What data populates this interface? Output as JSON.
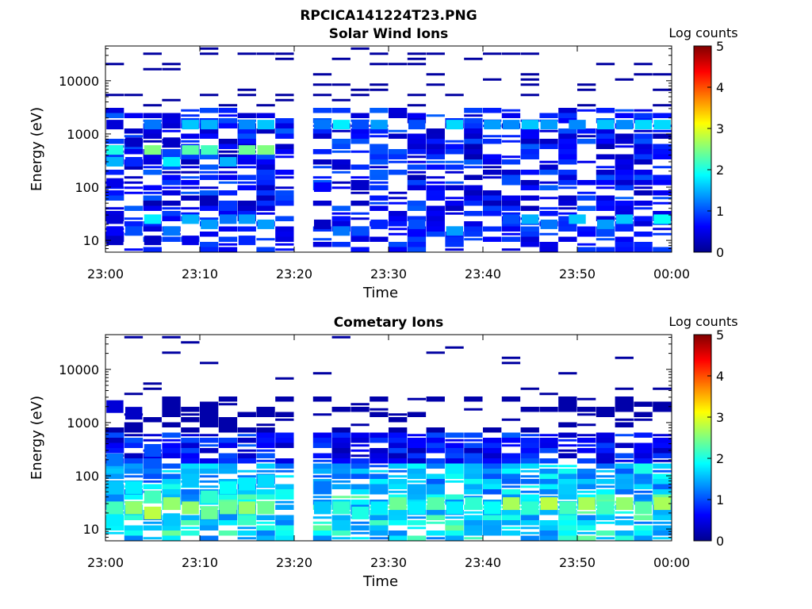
{
  "figure_title": "RPCICA141224T23.PNG",
  "colormap": [
    "#00008f",
    "#0000ff",
    "#0080ff",
    "#00ffff",
    "#80ff80",
    "#ffff00",
    "#ff8000",
    "#ff0000",
    "#800000"
  ],
  "chart_data": [
    {
      "type": "heatmap",
      "title": "Solar Wind Ions",
      "xlabel": "Time",
      "ylabel": "Energy (eV)",
      "x_ticks": [
        "23:00",
        "23:10",
        "23:20",
        "23:30",
        "23:40",
        "23:50",
        "00:00"
      ],
      "x_range": [
        "23:00",
        "00:00"
      ],
      "y_scale": "log",
      "y_ticks": [
        10,
        100,
        1000,
        10000
      ],
      "y_range": [
        6,
        45000
      ],
      "colorbar": {
        "label": "Log counts",
        "ticks": [
          0,
          1,
          2,
          3,
          4,
          5
        ],
        "range": [
          0,
          5
        ]
      },
      "data_gap": [
        "23:19",
        "23:22"
      ],
      "cells": [
        [
          "23:01",
          10,
          0.3
        ],
        [
          "23:01",
          15,
          0.6
        ],
        [
          "23:01",
          25,
          0.4
        ],
        [
          "23:01",
          120,
          0.5
        ],
        [
          "23:01",
          300,
          1.5
        ],
        [
          "23:01",
          500,
          2.0
        ],
        [
          "23:01",
          1500,
          0.4
        ],
        [
          "23:03",
          15,
          1.0
        ],
        [
          "23:03",
          300,
          0.8
        ],
        [
          "23:03",
          700,
          0.3
        ],
        [
          "23:05",
          10,
          0.3
        ],
        [
          "23:05",
          25,
          1.8
        ],
        [
          "23:05",
          500,
          2.5
        ],
        [
          "23:05",
          1500,
          1.2
        ],
        [
          "23:07",
          15,
          1.2
        ],
        [
          "23:07",
          300,
          1.8
        ],
        [
          "23:07",
          700,
          0.3
        ],
        [
          "23:09",
          10,
          0.5
        ],
        [
          "23:09",
          25,
          1.5
        ],
        [
          "23:09",
          500,
          2.3
        ],
        [
          "23:09",
          1500,
          1.6
        ],
        [
          "23:11",
          20,
          1.4
        ],
        [
          "23:11",
          500,
          2.2
        ],
        [
          "23:11",
          1500,
          1.5
        ],
        [
          "23:13",
          25,
          1.2
        ],
        [
          "23:13",
          300,
          1.5
        ],
        [
          "23:15",
          10,
          0.8
        ],
        [
          "23:15",
          25,
          1.4
        ],
        [
          "23:15",
          500,
          2.4
        ],
        [
          "23:15",
          1500,
          1.3
        ],
        [
          "23:17",
          20,
          1.4
        ],
        [
          "23:17",
          500,
          2.5
        ],
        [
          "23:17",
          1500,
          1.6
        ],
        [
          "23:23",
          20,
          0.3
        ],
        [
          "23:23",
          100,
          0.6
        ],
        [
          "23:23",
          1500,
          1.2
        ],
        [
          "23:25",
          15,
          1.2
        ],
        [
          "23:25",
          1500,
          1.8
        ],
        [
          "23:27",
          15,
          1.0
        ],
        [
          "23:27",
          1500,
          1.0
        ],
        [
          "23:29",
          20,
          0.8
        ],
        [
          "23:29",
          1500,
          1.4
        ],
        [
          "23:33",
          20,
          1.0
        ],
        [
          "23:33",
          1500,
          1.0
        ],
        [
          "23:37",
          15,
          1.4
        ],
        [
          "23:37",
          1500,
          1.7
        ],
        [
          "23:41",
          1500,
          1.4
        ],
        [
          "23:43",
          25,
          1.0
        ],
        [
          "23:43",
          1500,
          1.3
        ],
        [
          "23:45",
          25,
          1.5
        ],
        [
          "23:45",
          1500,
          1.6
        ],
        [
          "23:47",
          20,
          1.2
        ],
        [
          "23:47",
          1500,
          1.4
        ],
        [
          "23:50",
          25,
          1.6
        ],
        [
          "23:50",
          1500,
          1.3
        ],
        [
          "23:53",
          20,
          1.4
        ],
        [
          "23:53",
          1500,
          1.6
        ],
        [
          "23:55",
          25,
          1.6
        ],
        [
          "23:55",
          1500,
          1.3
        ],
        [
          "23:57",
          1500,
          1.7
        ],
        [
          "23:59",
          25,
          1.9
        ],
        [
          "23:59",
          1500,
          1.7
        ]
      ]
    },
    {
      "type": "heatmap",
      "title": "Cometary Ions",
      "xlabel": "Time",
      "ylabel": "Energy (eV)",
      "x_ticks": [
        "23:00",
        "23:10",
        "23:20",
        "23:30",
        "23:40",
        "23:50",
        "00:00"
      ],
      "x_range": [
        "23:00",
        "00:00"
      ],
      "y_scale": "log",
      "y_ticks": [
        10,
        100,
        1000,
        10000
      ],
      "y_range": [
        6,
        45000
      ],
      "colorbar": {
        "label": "Log counts",
        "ticks": [
          0,
          1,
          2,
          3,
          4,
          5
        ],
        "range": [
          0,
          5
        ]
      },
      "data_gap": [
        "23:19",
        "23:22"
      ],
      "cells": [
        [
          "23:01",
          15,
          1.8
        ],
        [
          "23:01",
          25,
          2.2
        ],
        [
          "23:01",
          60,
          1.6
        ],
        [
          "23:01",
          200,
          1.2
        ],
        [
          "23:01",
          2000,
          0.4
        ],
        [
          "23:03",
          25,
          2.6
        ],
        [
          "23:03",
          60,
          1.8
        ],
        [
          "23:03",
          1500,
          0.3
        ],
        [
          "23:05",
          20,
          2.8
        ],
        [
          "23:05",
          40,
          2.2
        ],
        [
          "23:05",
          300,
          1.0
        ],
        [
          "23:07",
          15,
          1.6
        ],
        [
          "23:07",
          30,
          2.6
        ],
        [
          "23:09",
          25,
          2.6
        ],
        [
          "23:09",
          80,
          1.6
        ],
        [
          "23:11",
          20,
          2.4
        ],
        [
          "23:11",
          40,
          2.1
        ],
        [
          "23:13",
          25,
          2.4
        ],
        [
          "23:13",
          60,
          1.9
        ],
        [
          "23:15",
          25,
          2.6
        ],
        [
          "23:15",
          70,
          1.8
        ],
        [
          "23:17",
          25,
          2.4
        ],
        [
          "23:17",
          80,
          1.7
        ],
        [
          "23:23",
          25,
          1.6
        ],
        [
          "23:23",
          60,
          1.2
        ],
        [
          "23:25",
          25,
          2.1
        ],
        [
          "23:27",
          20,
          2.0
        ],
        [
          "23:29",
          25,
          1.8
        ],
        [
          "23:31",
          30,
          2.4
        ],
        [
          "23:33",
          25,
          1.8
        ],
        [
          "23:35",
          30,
          2.3
        ],
        [
          "23:37",
          25,
          1.8
        ],
        [
          "23:39",
          30,
          2.1
        ],
        [
          "23:41",
          25,
          1.9
        ],
        [
          "23:43",
          30,
          2.7
        ],
        [
          "23:45",
          25,
          2.1
        ],
        [
          "23:47",
          30,
          2.8
        ],
        [
          "23:49",
          25,
          2.2
        ],
        [
          "23:51",
          30,
          2.7
        ],
        [
          "23:53",
          25,
          2.2
        ],
        [
          "23:55",
          30,
          2.6
        ],
        [
          "23:57",
          25,
          2.3
        ],
        [
          "23:59",
          30,
          2.7
        ]
      ]
    }
  ]
}
